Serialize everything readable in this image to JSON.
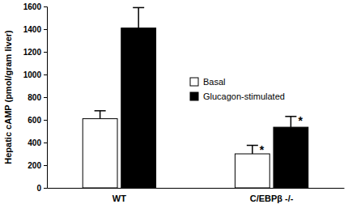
{
  "chart_data": {
    "type": "bar",
    "y_label": "Hepatic cAMP (pmol/gram liver)",
    "categories": [
      "WT",
      "C/EBPβ -/-"
    ],
    "series": [
      {
        "name": "Basal",
        "color": "#ffffff",
        "values": [
          610,
          300
        ],
        "errors": [
          70,
          75
        ],
        "significance": [
          null,
          "*"
        ]
      },
      {
        "name": "Glucagon-stimulated",
        "color": "#000000",
        "values": [
          1410,
          535
        ],
        "errors": [
          180,
          95
        ],
        "significance": [
          null,
          "*"
        ]
      }
    ],
    "ylim": [
      0,
      1600
    ],
    "yticks": [
      0,
      200,
      400,
      600,
      800,
      1000,
      1200,
      1400,
      1600
    ],
    "grid": false,
    "legend": "upper right"
  }
}
